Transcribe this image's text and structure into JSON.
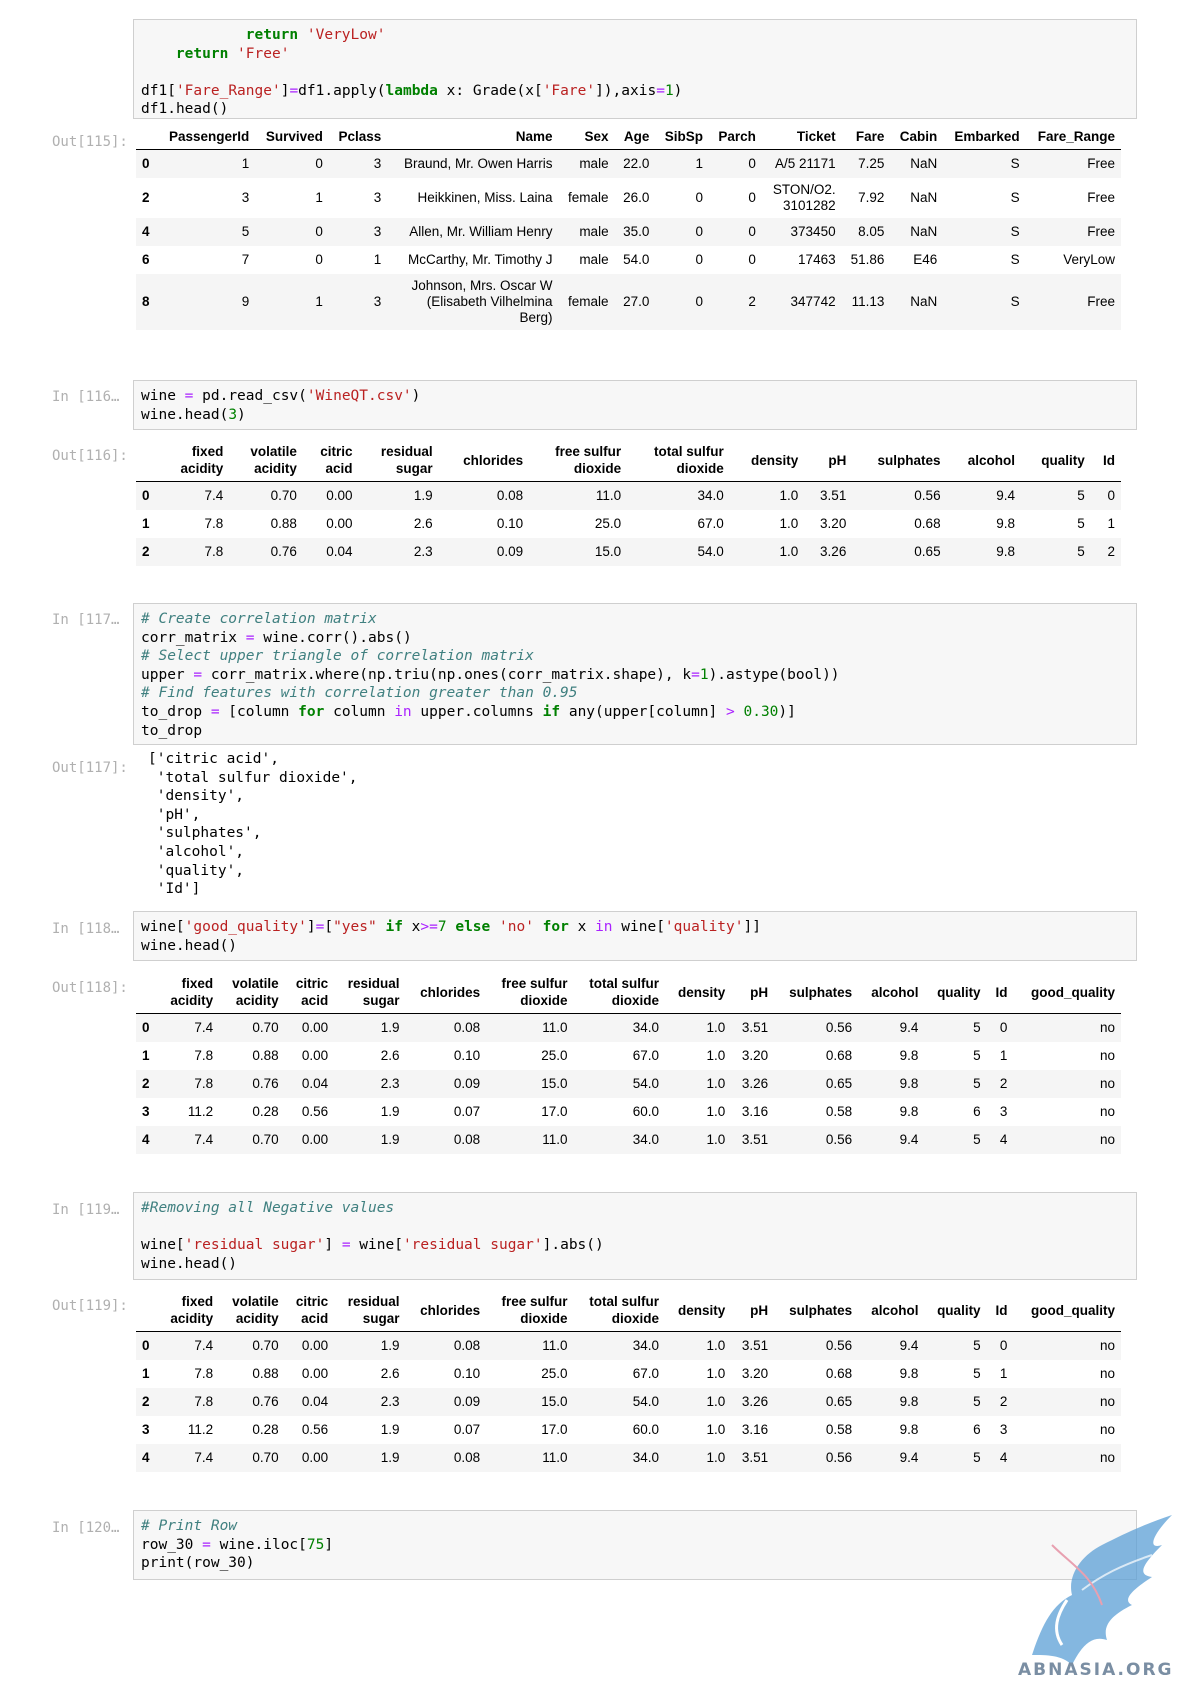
{
  "cells": {
    "c115": {
      "out_prompt": "Out[115]:",
      "code": [
        [
          {
            "t": "            "
          },
          {
            "t": "return",
            "c": "kw"
          },
          {
            "t": " "
          },
          {
            "t": "'VeryLow'",
            "c": "st"
          }
        ],
        [
          {
            "t": "    "
          },
          {
            "t": "return",
            "c": "kw"
          },
          {
            "t": " "
          },
          {
            "t": "'Free'",
            "c": "st"
          }
        ],
        [
          {
            "t": ""
          }
        ],
        [
          {
            "t": "df1"
          },
          {
            "t": "[",
            "c": "pl"
          },
          {
            "t": "'Fare_Range'",
            "c": "st"
          },
          {
            "t": "]"
          },
          {
            "t": "=",
            "c": "op"
          },
          {
            "t": "df1"
          },
          {
            "t": "."
          },
          {
            "t": "apply"
          },
          {
            "t": "("
          },
          {
            "t": "lambda",
            "c": "kw"
          },
          {
            "t": " x"
          },
          {
            "t": ":"
          },
          {
            "t": " Grade"
          },
          {
            "t": "("
          },
          {
            "t": "x"
          },
          {
            "t": "["
          },
          {
            "t": "'Fare'",
            "c": "st"
          },
          {
            "t": "])"
          },
          {
            "t": ","
          },
          {
            "t": "axis"
          },
          {
            "t": "=",
            "c": "op"
          },
          {
            "t": "1",
            "c": "nm"
          },
          {
            "t": ")"
          }
        ],
        [
          {
            "t": "df1"
          },
          {
            "t": "."
          },
          {
            "t": "head"
          },
          {
            "t": "()"
          }
        ]
      ],
      "table": {
        "columns": [
          "PassengerId",
          "Survived",
          "Pclass",
          "Name",
          "Sex",
          "Age",
          "SibSp",
          "Parch",
          "Ticket",
          "Fare",
          "Cabin",
          "Embarked",
          "Fare_Range"
        ],
        "rows": [
          [
            "0",
            "1",
            "0",
            "3",
            "Braund, Mr. Owen Harris",
            "male",
            "22.0",
            "1",
            "0",
            "A/5 21171",
            "7.25",
            "NaN",
            "S",
            "Free"
          ],
          [
            "2",
            "3",
            "1",
            "3",
            "Heikkinen, Miss. Laina",
            "female",
            "26.0",
            "0",
            "0",
            "STON/O2.\n3101282",
            "7.92",
            "NaN",
            "S",
            "Free"
          ],
          [
            "4",
            "5",
            "0",
            "3",
            "Allen, Mr. William Henry",
            "male",
            "35.0",
            "0",
            "0",
            "373450",
            "8.05",
            "NaN",
            "S",
            "Free"
          ],
          [
            "6",
            "7",
            "0",
            "1",
            "McCarthy, Mr. Timothy J",
            "male",
            "54.0",
            "0",
            "0",
            "17463",
            "51.86",
            "E46",
            "S",
            "VeryLow"
          ],
          [
            "8",
            "9",
            "1",
            "3",
            "Johnson, Mrs. Oscar W\n(Elisabeth Vilhelmina\nBerg)",
            "female",
            "27.0",
            "0",
            "2",
            "347742",
            "11.13",
            "NaN",
            "S",
            "Free"
          ]
        ]
      }
    },
    "c116": {
      "in_prompt": "In [116…",
      "out_prompt": "Out[116]:",
      "code": [
        [
          {
            "t": "wine "
          },
          {
            "t": "=",
            "c": "op"
          },
          {
            "t": " pd"
          },
          {
            "t": "."
          },
          {
            "t": "read_csv"
          },
          {
            "t": "("
          },
          {
            "t": "'WineQT.csv'",
            "c": "st"
          },
          {
            "t": ")"
          }
        ],
        [
          {
            "t": "wine"
          },
          {
            "t": "."
          },
          {
            "t": "head"
          },
          {
            "t": "("
          },
          {
            "t": "3",
            "c": "nm"
          },
          {
            "t": ")"
          }
        ]
      ],
      "table": {
        "columns": [
          "fixed\nacidity",
          "volatile\nacidity",
          "citric\nacid",
          "residual\nsugar",
          "chlorides",
          "free sulfur\ndioxide",
          "total sulfur\ndioxide",
          "density",
          "pH",
          "sulphates",
          "alcohol",
          "quality",
          "Id"
        ],
        "rows": [
          [
            "0",
            "7.4",
            "0.70",
            "0.00",
            "1.9",
            "0.08",
            "11.0",
            "34.0",
            "1.0",
            "3.51",
            "0.56",
            "9.4",
            "5",
            "0"
          ],
          [
            "1",
            "7.8",
            "0.88",
            "0.00",
            "2.6",
            "0.10",
            "25.0",
            "67.0",
            "1.0",
            "3.20",
            "0.68",
            "9.8",
            "5",
            "1"
          ],
          [
            "2",
            "7.8",
            "0.76",
            "0.04",
            "2.3",
            "0.09",
            "15.0",
            "54.0",
            "1.0",
            "3.26",
            "0.65",
            "9.8",
            "5",
            "2"
          ]
        ]
      }
    },
    "c117": {
      "in_prompt": "In [117…",
      "out_prompt": "Out[117]:",
      "code": [
        [
          {
            "t": "# Create correlation matrix",
            "c": "cm"
          }
        ],
        [
          {
            "t": "corr_matrix "
          },
          {
            "t": "=",
            "c": "op"
          },
          {
            "t": " wine"
          },
          {
            "t": "."
          },
          {
            "t": "corr"
          },
          {
            "t": "()"
          },
          {
            "t": "."
          },
          {
            "t": "abs"
          },
          {
            "t": "()"
          }
        ],
        [
          {
            "t": "# Select upper triangle of correlation matrix",
            "c": "cm"
          }
        ],
        [
          {
            "t": "upper "
          },
          {
            "t": "=",
            "c": "op"
          },
          {
            "t": " corr_matrix"
          },
          {
            "t": "."
          },
          {
            "t": "where"
          },
          {
            "t": "("
          },
          {
            "t": "np"
          },
          {
            "t": "."
          },
          {
            "t": "triu"
          },
          {
            "t": "("
          },
          {
            "t": "np"
          },
          {
            "t": "."
          },
          {
            "t": "ones"
          },
          {
            "t": "("
          },
          {
            "t": "corr_matrix"
          },
          {
            "t": "."
          },
          {
            "t": "shape"
          },
          {
            "t": "),"
          },
          {
            "t": " k"
          },
          {
            "t": "=",
            "c": "op"
          },
          {
            "t": "1",
            "c": "nm"
          },
          {
            "t": ")"
          },
          {
            "t": "."
          },
          {
            "t": "astype"
          },
          {
            "t": "("
          },
          {
            "t": "bool"
          },
          {
            "t": "))"
          }
        ],
        [
          {
            "t": "# Find features with correlation greater than 0.95",
            "c": "cm"
          }
        ],
        [
          {
            "t": "to_drop "
          },
          {
            "t": "=",
            "c": "op"
          },
          {
            "t": " [column "
          },
          {
            "t": "for",
            "c": "kw"
          },
          {
            "t": " column "
          },
          {
            "t": "in",
            "c": "op"
          },
          {
            "t": " upper"
          },
          {
            "t": "."
          },
          {
            "t": "columns "
          },
          {
            "t": "if",
            "c": "kw"
          },
          {
            "t": " any"
          },
          {
            "t": "("
          },
          {
            "t": "upper"
          },
          {
            "t": "["
          },
          {
            "t": "column"
          },
          {
            "t": "]"
          },
          {
            "t": " "
          },
          {
            "t": ">",
            "c": "op"
          },
          {
            "t": " "
          },
          {
            "t": "0.30",
            "c": "nm"
          },
          {
            "t": ")]"
          }
        ],
        [
          {
            "t": "to_drop"
          }
        ]
      ],
      "output": [
        "['citric acid',",
        " 'total sulfur dioxide',",
        " 'density',",
        " 'pH',",
        " 'sulphates',",
        " 'alcohol',",
        " 'quality',",
        " 'Id']"
      ]
    },
    "c118": {
      "in_prompt": "In [118…",
      "out_prompt": "Out[118]:",
      "code": [
        [
          {
            "t": "wine"
          },
          {
            "t": "["
          },
          {
            "t": "'good_quality'",
            "c": "st"
          },
          {
            "t": "]"
          },
          {
            "t": "=",
            "c": "op"
          },
          {
            "t": "["
          },
          {
            "t": "\"yes\"",
            "c": "st"
          },
          {
            "t": " "
          },
          {
            "t": "if",
            "c": "kw"
          },
          {
            "t": " x"
          },
          {
            "t": ">=",
            "c": "op"
          },
          {
            "t": "7",
            "c": "nm"
          },
          {
            "t": " "
          },
          {
            "t": "else",
            "c": "kw"
          },
          {
            "t": " "
          },
          {
            "t": "'no'",
            "c": "st"
          },
          {
            "t": " "
          },
          {
            "t": "for",
            "c": "kw"
          },
          {
            "t": " x "
          },
          {
            "t": "in",
            "c": "op"
          },
          {
            "t": " wine"
          },
          {
            "t": "["
          },
          {
            "t": "'quality'",
            "c": "st"
          },
          {
            "t": "]]"
          }
        ],
        [
          {
            "t": "wine"
          },
          {
            "t": "."
          },
          {
            "t": "head"
          },
          {
            "t": "()"
          }
        ]
      ],
      "table": {
        "columns": [
          "fixed\nacidity",
          "volatile\nacidity",
          "citric\nacid",
          "residual\nsugar",
          "chlorides",
          "free sulfur\ndioxide",
          "total sulfur\ndioxide",
          "density",
          "pH",
          "sulphates",
          "alcohol",
          "quality",
          "Id",
          "good_quality"
        ],
        "rows": [
          [
            "0",
            "7.4",
            "0.70",
            "0.00",
            "1.9",
            "0.08",
            "11.0",
            "34.0",
            "1.0",
            "3.51",
            "0.56",
            "9.4",
            "5",
            "0",
            "no"
          ],
          [
            "1",
            "7.8",
            "0.88",
            "0.00",
            "2.6",
            "0.10",
            "25.0",
            "67.0",
            "1.0",
            "3.20",
            "0.68",
            "9.8",
            "5",
            "1",
            "no"
          ],
          [
            "2",
            "7.8",
            "0.76",
            "0.04",
            "2.3",
            "0.09",
            "15.0",
            "54.0",
            "1.0",
            "3.26",
            "0.65",
            "9.8",
            "5",
            "2",
            "no"
          ],
          [
            "3",
            "11.2",
            "0.28",
            "0.56",
            "1.9",
            "0.07",
            "17.0",
            "60.0",
            "1.0",
            "3.16",
            "0.58",
            "9.8",
            "6",
            "3",
            "no"
          ],
          [
            "4",
            "7.4",
            "0.70",
            "0.00",
            "1.9",
            "0.08",
            "11.0",
            "34.0",
            "1.0",
            "3.51",
            "0.56",
            "9.4",
            "5",
            "4",
            "no"
          ]
        ]
      }
    },
    "c119": {
      "in_prompt": "In [119…",
      "out_prompt": "Out[119]:",
      "code": [
        [
          {
            "t": "#Removing all Negative values",
            "c": "cm"
          }
        ],
        [
          {
            "t": ""
          }
        ],
        [
          {
            "t": "wine"
          },
          {
            "t": "["
          },
          {
            "t": "'residual sugar'",
            "c": "st"
          },
          {
            "t": "]"
          },
          {
            "t": " "
          },
          {
            "t": "=",
            "c": "op"
          },
          {
            "t": " wine"
          },
          {
            "t": "["
          },
          {
            "t": "'residual sugar'",
            "c": "st"
          },
          {
            "t": "]"
          },
          {
            "t": "."
          },
          {
            "t": "abs"
          },
          {
            "t": "()"
          }
        ],
        [
          {
            "t": "wine"
          },
          {
            "t": "."
          },
          {
            "t": "head"
          },
          {
            "t": "()"
          }
        ]
      ],
      "table": {
        "columns": [
          "fixed\nacidity",
          "volatile\nacidity",
          "citric\nacid",
          "residual\nsugar",
          "chlorides",
          "free sulfur\ndioxide",
          "total sulfur\ndioxide",
          "density",
          "pH",
          "sulphates",
          "alcohol",
          "quality",
          "Id",
          "good_quality"
        ],
        "rows": [
          [
            "0",
            "7.4",
            "0.70",
            "0.00",
            "1.9",
            "0.08",
            "11.0",
            "34.0",
            "1.0",
            "3.51",
            "0.56",
            "9.4",
            "5",
            "0",
            "no"
          ],
          [
            "1",
            "7.8",
            "0.88",
            "0.00",
            "2.6",
            "0.10",
            "25.0",
            "67.0",
            "1.0",
            "3.20",
            "0.68",
            "9.8",
            "5",
            "1",
            "no"
          ],
          [
            "2",
            "7.8",
            "0.76",
            "0.04",
            "2.3",
            "0.09",
            "15.0",
            "54.0",
            "1.0",
            "3.26",
            "0.65",
            "9.8",
            "5",
            "2",
            "no"
          ],
          [
            "3",
            "11.2",
            "0.28",
            "0.56",
            "1.9",
            "0.07",
            "17.0",
            "60.0",
            "1.0",
            "3.16",
            "0.58",
            "9.8",
            "6",
            "3",
            "no"
          ],
          [
            "4",
            "7.4",
            "0.70",
            "0.00",
            "1.9",
            "0.08",
            "11.0",
            "34.0",
            "1.0",
            "3.51",
            "0.56",
            "9.4",
            "5",
            "4",
            "no"
          ]
        ]
      }
    },
    "c120": {
      "in_prompt": "In [120…",
      "code": [
        [
          {
            "t": "# Print Row",
            "c": "cm"
          }
        ],
        [
          {
            "t": "row_30 "
          },
          {
            "t": "=",
            "c": "op"
          },
          {
            "t": " wine"
          },
          {
            "t": "."
          },
          {
            "t": "iloc"
          },
          {
            "t": "["
          },
          {
            "t": "75",
            "c": "nm"
          },
          {
            "t": "]"
          }
        ],
        [
          {
            "t": "print"
          },
          {
            "t": "("
          },
          {
            "t": "row_30"
          },
          {
            "t": ")"
          }
        ]
      ]
    }
  },
  "watermark": {
    "text": "ABNASIA.ORG",
    "icon": "griffin-logo-icon",
    "color": "#5b9fd6"
  }
}
